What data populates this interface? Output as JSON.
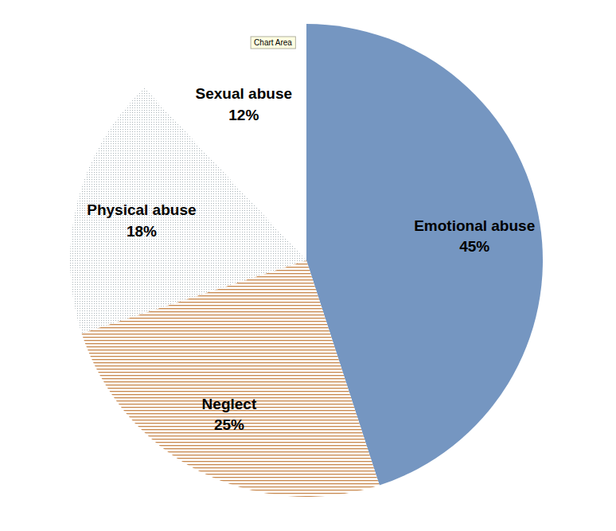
{
  "chart_data": {
    "type": "pie",
    "annotation": "Chart Area",
    "categories": [
      "Emotional abuse",
      "Neglect",
      "Physical abuse",
      "Sexual abuse"
    ],
    "values": [
      45,
      25,
      18,
      12
    ],
    "value_labels": [
      "45%",
      "25%",
      "18%",
      "12%"
    ],
    "colors": [
      "#7596c1",
      "#c8884e",
      "#a9b3b8",
      "#ffffff"
    ],
    "data_labels": true
  }
}
